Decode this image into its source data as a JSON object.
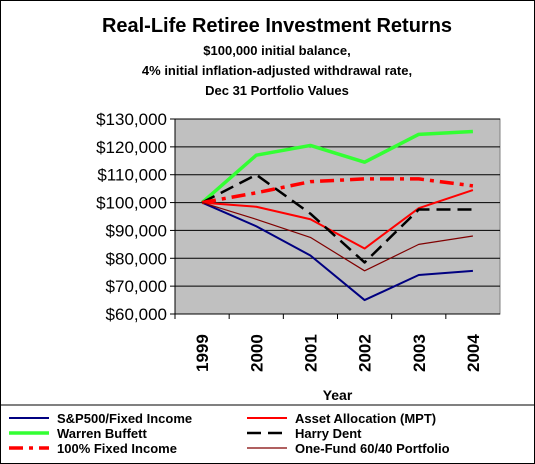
{
  "chart_data": {
    "type": "line",
    "title": "Real-Life Retiree Investment Returns",
    "subtitle_lines": [
      "$100,000 initial balance,",
      "4% initial inflation-adjusted withdrawal rate,",
      "Dec 31 Portfolio Values"
    ],
    "xlabel": "Year",
    "ylabel": "",
    "categories": [
      "1999",
      "2000",
      "2001",
      "2002",
      "2003",
      "2004"
    ],
    "ylim": [
      60000,
      130000
    ],
    "yticks": [
      60000,
      70000,
      80000,
      90000,
      100000,
      110000,
      120000,
      130000
    ],
    "ytick_labels": [
      "$60,000",
      "$70,000",
      "$80,000",
      "$90,000",
      "$100,000",
      "$110,000",
      "$120,000",
      "$130,000"
    ],
    "grid": "horizontal",
    "plot_background": "#c0c0c0",
    "legend_position": "bottom",
    "series": [
      {
        "name": "S&P500/Fixed Income",
        "color": "#000080",
        "dash": "solid",
        "width": 2,
        "values": [
          100000,
          91500,
          81000,
          65000,
          74000,
          75500
        ]
      },
      {
        "name": "Asset Allocation (MPT)",
        "color": "#ff0000",
        "dash": "solid",
        "width": 2,
        "values": [
          100000,
          98500,
          94000,
          83500,
          98000,
          104500
        ]
      },
      {
        "name": "Warren Buffett",
        "color": "#33ff33",
        "dash": "solid",
        "width": 3.5,
        "values": [
          100000,
          117000,
          120500,
          114500,
          124500,
          125500
        ]
      },
      {
        "name": "Harry Dent",
        "color": "#000000",
        "dash": "dashed",
        "width": 2.5,
        "values": [
          100000,
          110000,
          96000,
          78500,
          97500,
          97500
        ]
      },
      {
        "name": "100% Fixed Income",
        "color": "#ff0000",
        "dash": "dashdot",
        "width": 3.5,
        "values": [
          100000,
          103500,
          107500,
          108500,
          108500,
          106000
        ]
      },
      {
        "name": "One-Fund 60/40 Portfolio",
        "color": "#800000",
        "dash": "solid",
        "width": 1.2,
        "values": [
          100000,
          94000,
          87500,
          75500,
          85000,
          88000
        ]
      }
    ]
  }
}
